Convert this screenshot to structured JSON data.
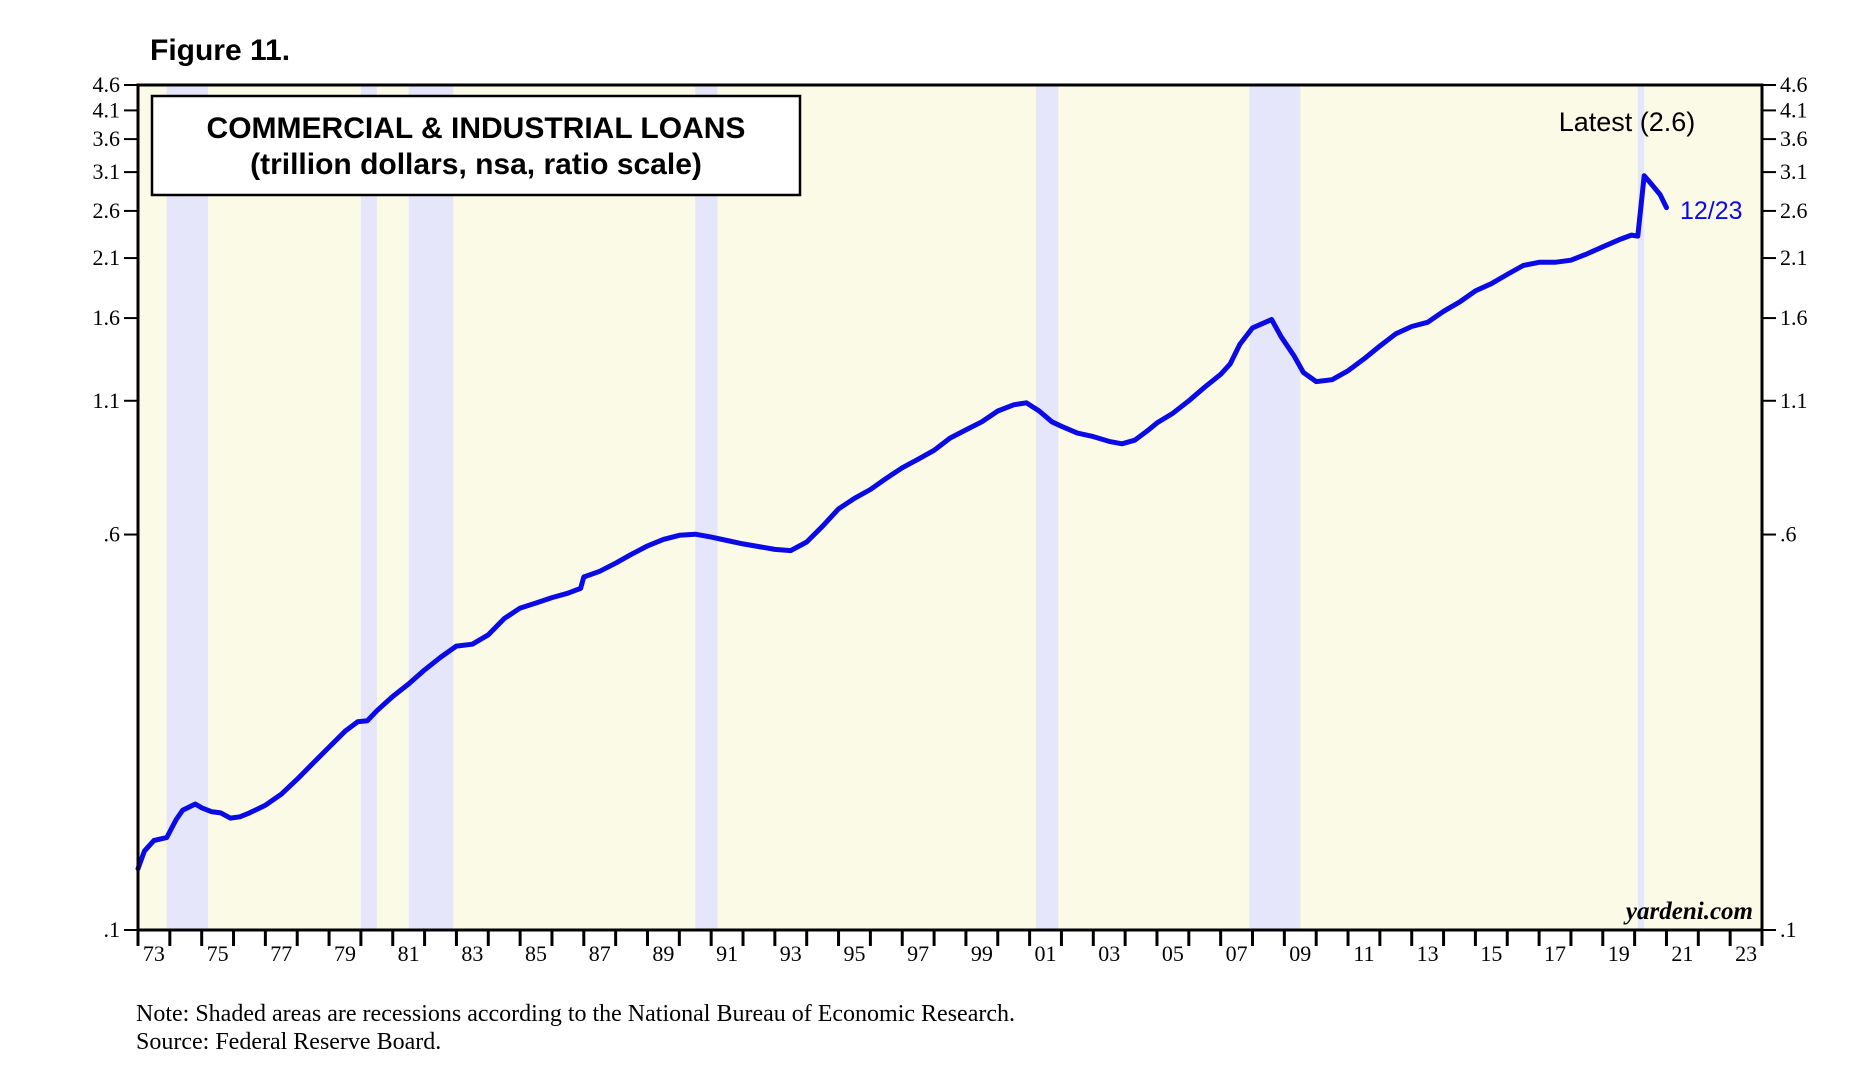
{
  "figure_label": "Figure 11.",
  "note": "Note: Shaded areas are recessions according to the National Bureau of Economic Research.",
  "source": "Source: Federal Reserve Board.",
  "watermark": "yardeni.com",
  "colors": {
    "line": "#0a0ae6",
    "background": "#fbfae6",
    "recession": "#e6e6fa",
    "frame": "#000000"
  },
  "chart_data": {
    "type": "line",
    "title": "COMMERCIAL & INDUSTRIAL LOANS",
    "subtitle": "(trillion dollars, nsa, ratio scale)",
    "y_scale": "log",
    "ylim": [
      0.1,
      4.6
    ],
    "xlim": [
      1973.0,
      2024.0
    ],
    "y_ticks": [
      {
        "value": 0.1,
        "label": ".1"
      },
      {
        "value": 0.6,
        "label": ".6"
      },
      {
        "value": 1.1,
        "label": "1.1"
      },
      {
        "value": 1.6,
        "label": "1.6"
      },
      {
        "value": 2.1,
        "label": "2.1"
      },
      {
        "value": 2.6,
        "label": "2.6"
      },
      {
        "value": 3.1,
        "label": "3.1"
      },
      {
        "value": 3.6,
        "label": "3.6"
      },
      {
        "value": 4.1,
        "label": "4.1"
      },
      {
        "value": 4.6,
        "label": "4.6"
      }
    ],
    "x_tick_labels": [
      "73",
      "75",
      "77",
      "79",
      "81",
      "83",
      "85",
      "87",
      "89",
      "91",
      "93",
      "95",
      "97",
      "99",
      "01",
      "03",
      "05",
      "07",
      "09",
      "11",
      "13",
      "15",
      "17",
      "19",
      "21",
      "23"
    ],
    "x_tick_years": [
      1973,
      1975,
      1977,
      1979,
      1981,
      1983,
      1985,
      1987,
      1989,
      1991,
      1993,
      1995,
      1997,
      1999,
      2001,
      2003,
      2005,
      2007,
      2009,
      2011,
      2013,
      2015,
      2017,
      2019,
      2021,
      2023
    ],
    "recessions": [
      [
        1973.9,
        1975.2
      ],
      [
        1980.0,
        1980.5
      ],
      [
        1981.5,
        1982.9
      ],
      [
        1990.5,
        1991.2
      ],
      [
        2001.2,
        2001.9
      ],
      [
        2007.9,
        2009.5
      ],
      [
        2020.1,
        2020.3
      ]
    ],
    "series": [
      {
        "x": [
          1973.0,
          1973.2,
          1973.5,
          1973.9,
          1974.2,
          1974.4,
          1974.8,
          1975.0,
          1975.3,
          1975.6,
          1975.9,
          1976.2,
          1976.5,
          1977.0,
          1977.5,
          1978.0,
          1978.5,
          1979.0,
          1979.5,
          1979.9,
          1980.2,
          1980.5,
          1981.0,
          1981.5,
          1982.0,
          1982.5,
          1983.0,
          1983.5,
          1984.0,
          1984.5,
          1985.0,
          1985.5,
          1986.0,
          1986.5,
          1986.9,
          1987.0,
          1987.5,
          1988.0,
          1988.5,
          1989.0,
          1989.5,
          1990.0,
          1990.5,
          1991.0,
          1991.5,
          1992.0,
          1992.5,
          1993.0,
          1993.5,
          1994.0,
          1994.5,
          1995.0,
          1995.5,
          1996.0,
          1996.5,
          1997.0,
          1997.5,
          1998.0,
          1998.5,
          1999.0,
          1999.5,
          2000.0,
          2000.5,
          2000.9,
          2001.3,
          2001.7,
          2002.0,
          2002.5,
          2003.0,
          2003.5,
          2003.9,
          2004.3,
          2004.7,
          2005.0,
          2005.5,
          2006.0,
          2006.5,
          2007.0,
          2007.3,
          2007.6,
          2008.0,
          2008.3,
          2008.6,
          2008.9,
          2009.3,
          2009.6,
          2010.0,
          2010.5,
          2011.0,
          2011.5,
          2012.0,
          2012.5,
          2013.0,
          2013.5,
          2014.0,
          2014.5,
          2015.0,
          2015.5,
          2016.0,
          2016.5,
          2017.0,
          2017.5,
          2018.0,
          2018.5,
          2019.0,
          2019.5,
          2019.9,
          2020.1,
          2020.3,
          2020.5,
          2020.8,
          2021.0
        ],
        "y": [
          0.132,
          0.143,
          0.15,
          0.152,
          0.165,
          0.172,
          0.177,
          0.174,
          0.171,
          0.17,
          0.166,
          0.167,
          0.17,
          0.176,
          0.185,
          0.198,
          0.213,
          0.229,
          0.246,
          0.257,
          0.258,
          0.27,
          0.288,
          0.305,
          0.325,
          0.344,
          0.362,
          0.365,
          0.381,
          0.41,
          0.43,
          0.44,
          0.451,
          0.46,
          0.47,
          0.495,
          0.508,
          0.527,
          0.549,
          0.57,
          0.587,
          0.598,
          0.601,
          0.593,
          0.584,
          0.575,
          0.568,
          0.561,
          0.558,
          0.58,
          0.623,
          0.674,
          0.707,
          0.736,
          0.774,
          0.812,
          0.844,
          0.879,
          0.929,
          0.964,
          1.0,
          1.05,
          1.08,
          1.09,
          1.05,
          1.0,
          0.98,
          0.95,
          0.935,
          0.915,
          0.905,
          0.92,
          0.96,
          0.995,
          1.04,
          1.1,
          1.17,
          1.24,
          1.3,
          1.42,
          1.53,
          1.56,
          1.59,
          1.47,
          1.35,
          1.25,
          1.2,
          1.21,
          1.26,
          1.33,
          1.41,
          1.49,
          1.54,
          1.57,
          1.65,
          1.72,
          1.81,
          1.87,
          1.95,
          2.03,
          2.06,
          2.06,
          2.08,
          2.14,
          2.21,
          2.28,
          2.33,
          2.32,
          3.05,
          2.95,
          2.8,
          2.64
        ]
      }
    ],
    "annotations": {
      "latest_label": "Latest (2.6)",
      "latest_date": "12/23"
    }
  }
}
